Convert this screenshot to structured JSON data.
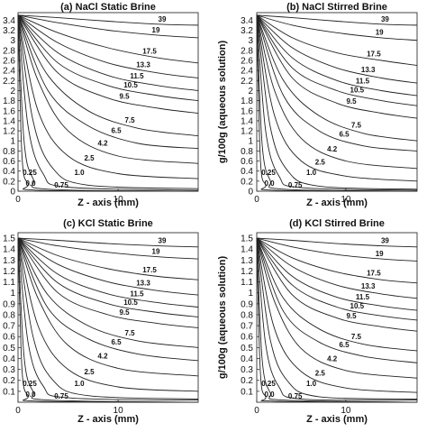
{
  "chart_data": [
    {
      "type": "line",
      "title": "(a) NaCl Static Brine",
      "xlabel": "Z - axis (mm)",
      "ylabel": "",
      "x_ticks": [
        0,
        10
      ],
      "y_ticks": [
        0,
        0.2,
        0.4,
        0.6,
        0.8,
        1,
        1.2,
        1.4,
        1.6,
        1.8,
        2,
        2.2,
        2.4,
        2.6,
        2.8,
        3,
        3.2,
        3.4
      ],
      "ylim": [
        0,
        3.55
      ],
      "xlim": [
        0,
        18
      ],
      "series": [
        {
          "name": "39",
          "x": [
            0,
            4,
            9,
            14,
            18
          ],
          "y": [
            3.5,
            3.45,
            3.38,
            3.32,
            3.3
          ]
        },
        {
          "name": "19",
          "x": [
            0,
            4,
            9,
            14,
            18
          ],
          "y": [
            3.5,
            3.35,
            3.2,
            3.1,
            3.05
          ]
        },
        {
          "name": "17.5",
          "x": [
            0,
            4,
            9,
            14,
            18
          ],
          "y": [
            3.5,
            3.15,
            2.85,
            2.65,
            2.55
          ]
        },
        {
          "name": "13.3",
          "x": [
            0,
            4,
            9,
            14,
            18
          ],
          "y": [
            3.5,
            2.95,
            2.55,
            2.35,
            2.25
          ]
        },
        {
          "name": "11.5",
          "x": [
            0,
            4,
            9,
            14,
            18
          ],
          "y": [
            3.5,
            2.75,
            2.3,
            2.1,
            2.0
          ]
        },
        {
          "name": "10.5",
          "x": [
            0,
            4,
            9,
            14,
            18
          ],
          "y": [
            3.5,
            2.55,
            2.1,
            1.9,
            1.8
          ]
        },
        {
          "name": "9.5",
          "x": [
            0,
            4,
            9,
            14,
            18
          ],
          "y": [
            3.5,
            2.35,
            1.85,
            1.65,
            1.55
          ]
        },
        {
          "name": "7.5",
          "x": [
            0,
            3,
            7,
            12,
            18
          ],
          "y": [
            3.5,
            2.3,
            1.6,
            1.25,
            1.1
          ]
        },
        {
          "name": "6.5",
          "x": [
            0,
            3,
            7,
            12,
            18
          ],
          "y": [
            3.5,
            2.0,
            1.3,
            0.95,
            0.85
          ]
        },
        {
          "name": "4.2",
          "x": [
            0,
            2,
            5,
            10,
            18
          ],
          "y": [
            3.5,
            2.2,
            1.2,
            0.7,
            0.55
          ]
        },
        {
          "name": "2.5",
          "x": [
            0,
            2,
            5,
            10,
            18
          ],
          "y": [
            3.5,
            1.6,
            0.7,
            0.35,
            0.25
          ]
        },
        {
          "name": "1.0",
          "x": [
            0,
            1.5,
            3.5,
            7,
            18
          ],
          "y": [
            3.5,
            1.4,
            0.45,
            0.12,
            0.05
          ]
        },
        {
          "name": "0.75",
          "x": [
            0,
            1,
            2.5,
            5,
            18
          ],
          "y": [
            3.5,
            1.3,
            0.35,
            0.08,
            0.02
          ]
        },
        {
          "name": "0.25",
          "x": [
            0,
            0.6,
            1.5,
            3,
            18
          ],
          "y": [
            3.5,
            1.0,
            0.25,
            0.04,
            0.0
          ]
        },
        {
          "name": "0.0",
          "x": [
            0,
            0.4,
            1,
            2,
            18
          ],
          "y": [
            3.5,
            0.7,
            0.15,
            0.02,
            0.0
          ]
        }
      ]
    },
    {
      "type": "line",
      "title": "(b) NaCl Stirred Brine",
      "xlabel": "Z - axis (mm)",
      "ylabel": "g/100g (aqueous solution)",
      "x_ticks": [
        0,
        10
      ],
      "y_ticks": [
        0,
        0.2,
        0.4,
        0.6,
        0.8,
        1,
        1.2,
        1.4,
        1.6,
        1.8,
        2,
        2.2,
        2.4,
        2.6,
        2.8,
        3,
        3.2,
        3.4
      ],
      "ylim": [
        0,
        3.55
      ],
      "xlim": [
        0,
        18
      ],
      "series": [
        {
          "name": "39",
          "x": [
            0,
            4,
            9,
            14,
            18
          ],
          "y": [
            3.5,
            3.45,
            3.38,
            3.32,
            3.3
          ]
        },
        {
          "name": "19",
          "x": [
            0,
            4,
            9,
            14,
            18
          ],
          "y": [
            3.5,
            3.3,
            3.15,
            3.05,
            3.0
          ]
        },
        {
          "name": "17.5",
          "x": [
            0,
            4,
            9,
            14,
            18
          ],
          "y": [
            3.5,
            3.05,
            2.75,
            2.6,
            2.5
          ]
        },
        {
          "name": "13.3",
          "x": [
            0,
            4,
            9,
            14,
            18
          ],
          "y": [
            3.5,
            2.85,
            2.45,
            2.25,
            2.15
          ]
        },
        {
          "name": "11.5",
          "x": [
            0,
            4,
            9,
            14,
            18
          ],
          "y": [
            3.5,
            2.65,
            2.2,
            2.0,
            1.9
          ]
        },
        {
          "name": "10.5",
          "x": [
            0,
            4,
            9,
            14,
            18
          ],
          "y": [
            3.5,
            2.45,
            2.0,
            1.8,
            1.7
          ]
        },
        {
          "name": "9.5",
          "x": [
            0,
            4,
            9,
            14,
            18
          ],
          "y": [
            3.5,
            2.25,
            1.75,
            1.55,
            1.45
          ]
        },
        {
          "name": "7.5",
          "x": [
            0,
            3,
            7,
            12,
            18
          ],
          "y": [
            3.5,
            2.2,
            1.5,
            1.15,
            1.0
          ]
        },
        {
          "name": "6.5",
          "x": [
            0,
            3,
            7,
            12,
            18
          ],
          "y": [
            3.5,
            1.9,
            1.2,
            0.9,
            0.8
          ]
        },
        {
          "name": "4.2",
          "x": [
            0,
            2,
            5,
            10,
            18
          ],
          "y": [
            3.5,
            2.0,
            1.05,
            0.6,
            0.45
          ]
        },
        {
          "name": "2.5",
          "x": [
            0,
            2,
            5,
            10,
            18
          ],
          "y": [
            3.5,
            1.5,
            0.6,
            0.3,
            0.2
          ]
        },
        {
          "name": "1.0",
          "x": [
            0,
            1.5,
            3.5,
            7,
            18
          ],
          "y": [
            3.5,
            1.3,
            0.4,
            0.1,
            0.04
          ]
        },
        {
          "name": "0.75",
          "x": [
            0,
            1,
            2.5,
            5,
            18
          ],
          "y": [
            3.5,
            1.2,
            0.3,
            0.07,
            0.02
          ]
        },
        {
          "name": "0.25",
          "x": [
            0,
            0.6,
            1.5,
            3,
            18
          ],
          "y": [
            3.5,
            0.95,
            0.22,
            0.04,
            0.0
          ]
        },
        {
          "name": "0.0",
          "x": [
            0,
            0.4,
            1,
            2,
            18
          ],
          "y": [
            3.5,
            0.65,
            0.13,
            0.02,
            0.0
          ]
        }
      ]
    },
    {
      "type": "line",
      "title": "(c) KCl Static Brine",
      "xlabel": "Z - axis (mm)",
      "ylabel": "",
      "x_ticks": [
        0,
        10
      ],
      "y_ticks": [
        0.1,
        0.2,
        0.3,
        0.4,
        0.5,
        0.6,
        0.7,
        0.8,
        0.9,
        1,
        1.1,
        1.2,
        1.3,
        1.4,
        1.5
      ],
      "ylim": [
        0,
        1.55
      ],
      "xlim": [
        0,
        18
      ],
      "series": [
        {
          "name": "39",
          "x": [
            0,
            4,
            9,
            14,
            18
          ],
          "y": [
            1.5,
            1.48,
            1.45,
            1.43,
            1.42
          ]
        },
        {
          "name": "19",
          "x": [
            0,
            4,
            9,
            14,
            18
          ],
          "y": [
            1.5,
            1.43,
            1.37,
            1.33,
            1.31
          ]
        },
        {
          "name": "17.5",
          "x": [
            0,
            4,
            9,
            14,
            18
          ],
          "y": [
            1.5,
            1.34,
            1.22,
            1.15,
            1.12
          ]
        },
        {
          "name": "13.3",
          "x": [
            0,
            4,
            9,
            14,
            18
          ],
          "y": [
            1.5,
            1.26,
            1.1,
            1.02,
            0.98
          ]
        },
        {
          "name": "11.5",
          "x": [
            0,
            4,
            9,
            14,
            18
          ],
          "y": [
            1.5,
            1.17,
            0.99,
            0.91,
            0.87
          ]
        },
        {
          "name": "10.5",
          "x": [
            0,
            4,
            9,
            14,
            18
          ],
          "y": [
            1.5,
            1.09,
            0.9,
            0.82,
            0.78
          ]
        },
        {
          "name": "9.5",
          "x": [
            0,
            4,
            9,
            14,
            18
          ],
          "y": [
            1.5,
            1.0,
            0.8,
            0.72,
            0.68
          ]
        },
        {
          "name": "7.5",
          "x": [
            0,
            3,
            7,
            12,
            18
          ],
          "y": [
            1.5,
            0.98,
            0.7,
            0.56,
            0.5
          ]
        },
        {
          "name": "6.5",
          "x": [
            0,
            3,
            7,
            12,
            18
          ],
          "y": [
            1.5,
            0.86,
            0.58,
            0.44,
            0.38
          ]
        },
        {
          "name": "4.2",
          "x": [
            0,
            2,
            5,
            10,
            18
          ],
          "y": [
            1.5,
            0.95,
            0.52,
            0.31,
            0.24
          ]
        },
        {
          "name": "2.5",
          "x": [
            0,
            2,
            5,
            10,
            18
          ],
          "y": [
            1.5,
            0.7,
            0.3,
            0.14,
            0.1
          ]
        },
        {
          "name": "1.0",
          "x": [
            0,
            1.5,
            3.5,
            7,
            18
          ],
          "y": [
            1.5,
            0.6,
            0.2,
            0.06,
            0.03
          ]
        },
        {
          "name": "0.75",
          "x": [
            0,
            1,
            2.5,
            5,
            18
          ],
          "y": [
            1.5,
            0.55,
            0.15,
            0.04,
            0.02
          ]
        },
        {
          "name": "0.25",
          "x": [
            0,
            0.6,
            1.5,
            3,
            18
          ],
          "y": [
            1.5,
            0.42,
            0.1,
            0.02,
            0.0
          ]
        },
        {
          "name": "0.0",
          "x": [
            0,
            0.4,
            1,
            2,
            18
          ],
          "y": [
            1.5,
            0.3,
            0.06,
            0.01,
            0.0
          ]
        }
      ]
    },
    {
      "type": "line",
      "title": "(d) KCl Stirred Brine",
      "xlabel": "Z - axis (mm)",
      "ylabel": "g/100g (aqueous solution)",
      "x_ticks": [
        0,
        10
      ],
      "y_ticks": [
        0.1,
        0.2,
        0.3,
        0.4,
        0.5,
        0.6,
        0.7,
        0.8,
        0.9,
        1,
        1.1,
        1.2,
        1.3,
        1.4,
        1.5
      ],
      "ylim": [
        0,
        1.55
      ],
      "xlim": [
        0,
        18
      ],
      "series": [
        {
          "name": "39",
          "x": [
            0,
            4,
            9,
            14,
            18
          ],
          "y": [
            1.5,
            1.48,
            1.45,
            1.43,
            1.42
          ]
        },
        {
          "name": "19",
          "x": [
            0,
            4,
            9,
            14,
            18
          ],
          "y": [
            1.5,
            1.42,
            1.35,
            1.31,
            1.29
          ]
        },
        {
          "name": "17.5",
          "x": [
            0,
            4,
            9,
            14,
            18
          ],
          "y": [
            1.5,
            1.32,
            1.19,
            1.12,
            1.09
          ]
        },
        {
          "name": "13.3",
          "x": [
            0,
            4,
            9,
            14,
            18
          ],
          "y": [
            1.5,
            1.24,
            1.07,
            0.99,
            0.95
          ]
        },
        {
          "name": "11.5",
          "x": [
            0,
            4,
            9,
            14,
            18
          ],
          "y": [
            1.5,
            1.15,
            0.96,
            0.88,
            0.84
          ]
        },
        {
          "name": "10.5",
          "x": [
            0,
            4,
            9,
            14,
            18
          ],
          "y": [
            1.5,
            1.07,
            0.87,
            0.79,
            0.75
          ]
        },
        {
          "name": "9.5",
          "x": [
            0,
            4,
            9,
            14,
            18
          ],
          "y": [
            1.5,
            0.98,
            0.77,
            0.69,
            0.65
          ]
        },
        {
          "name": "7.5",
          "x": [
            0,
            3,
            7,
            12,
            18
          ],
          "y": [
            1.5,
            0.95,
            0.67,
            0.53,
            0.47
          ]
        },
        {
          "name": "6.5",
          "x": [
            0,
            3,
            7,
            12,
            18
          ],
          "y": [
            1.5,
            0.83,
            0.55,
            0.42,
            0.36
          ]
        },
        {
          "name": "4.2",
          "x": [
            0,
            2,
            5,
            10,
            18
          ],
          "y": [
            1.5,
            0.92,
            0.49,
            0.29,
            0.22
          ]
        },
        {
          "name": "2.5",
          "x": [
            0,
            2,
            5,
            10,
            18
          ],
          "y": [
            1.5,
            0.67,
            0.28,
            0.13,
            0.09
          ]
        },
        {
          "name": "1.0",
          "x": [
            0,
            1.5,
            3.5,
            7,
            18
          ],
          "y": [
            1.5,
            0.58,
            0.19,
            0.05,
            0.03
          ]
        },
        {
          "name": "0.75",
          "x": [
            0,
            1,
            2.5,
            5,
            18
          ],
          "y": [
            1.5,
            0.53,
            0.14,
            0.03,
            0.02
          ]
        },
        {
          "name": "0.25",
          "x": [
            0,
            0.6,
            1.5,
            3,
            18
          ],
          "y": [
            1.5,
            0.4,
            0.09,
            0.02,
            0.0
          ]
        },
        {
          "name": "0.0",
          "x": [
            0,
            0.4,
            1,
            2,
            18
          ],
          "y": [
            1.5,
            0.28,
            0.05,
            0.01,
            0.0
          ]
        }
      ]
    }
  ]
}
